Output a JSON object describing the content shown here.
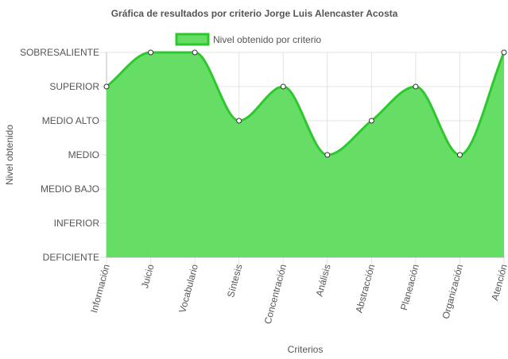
{
  "chart_data": {
    "type": "area",
    "title": "Gráfica de resultados por criterio Jorge Luis Alencaster Acosta",
    "xlabel": "Criterios",
    "ylabel": "Nivel obtenido",
    "y_levels": [
      "DEFICIENTE",
      "INFERIOR",
      "MEDIO BAJO",
      "MEDIO",
      "MEDIO ALTO",
      "SUPERIOR",
      "SOBRESALIENTE"
    ],
    "categories": [
      "Información",
      "Juicio",
      "Vocabulario",
      "Síntesis",
      "Concentración",
      "Análisis",
      "Abstracción",
      "Planeación",
      "Organización",
      "Atención"
    ],
    "series": [
      {
        "name": "Nivel obtenido por criterio",
        "values": [
          "SUPERIOR",
          "SOBRESALIENTE",
          "SOBRESALIENTE",
          "MEDIO ALTO",
          "SUPERIOR",
          "MEDIO",
          "MEDIO ALTO",
          "SUPERIOR",
          "MEDIO",
          "SOBRESALIENTE"
        ]
      }
    ],
    "colors": {
      "fill": "#66de66",
      "line": "#2ec82e",
      "point_fill": "#ffffff",
      "point_stroke": "#333333"
    },
    "legend_position": "top",
    "grid": true
  }
}
